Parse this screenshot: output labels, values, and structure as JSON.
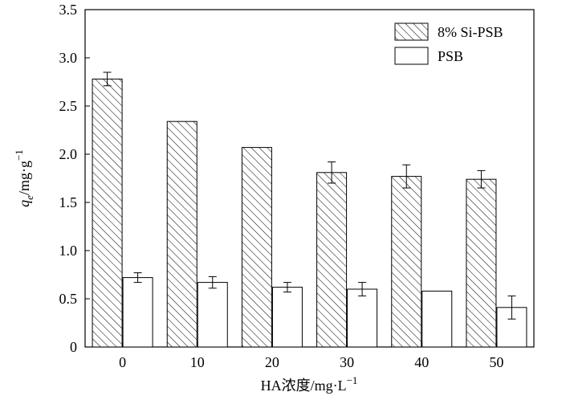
{
  "chart_data": {
    "type": "bar",
    "categories": [
      "0",
      "10",
      "20",
      "30",
      "40",
      "50"
    ],
    "series": [
      {
        "name": "8% Si-PSB",
        "pattern": "hatched",
        "values": [
          2.78,
          2.34,
          2.07,
          1.81,
          1.77,
          1.74
        ],
        "errors": [
          0.07,
          0.0,
          0.0,
          0.11,
          0.12,
          0.09
        ]
      },
      {
        "name": "PSB",
        "pattern": "white",
        "values": [
          0.72,
          0.67,
          0.62,
          0.6,
          0.58,
          0.41
        ],
        "errors": [
          0.05,
          0.06,
          0.05,
          0.07,
          0.0,
          0.12
        ]
      }
    ],
    "ylim": [
      0,
      3.5
    ],
    "yticks": [
      "0",
      "0.5",
      "1.0",
      "1.5",
      "2.0",
      "2.5",
      "3.0",
      "3.5"
    ],
    "xlabel": {
      "main": "HA浓度/mg·L",
      "sup": "−1"
    },
    "ylabel": {
      "q": "q",
      "sub": "e",
      "unit": "/mg·g",
      "sup": "−1"
    },
    "legend_position": "top-right",
    "grid": false,
    "colors": {
      "stroke": "#000000",
      "fill_plain": "#ffffff"
    }
  }
}
